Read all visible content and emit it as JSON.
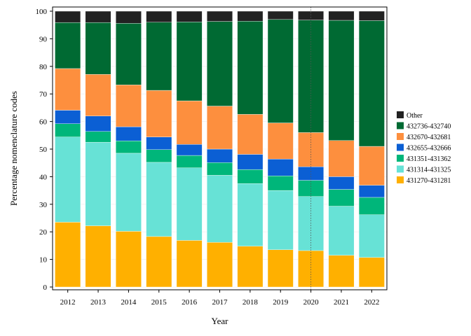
{
  "colors": {
    "background": "#ffffff",
    "grid": "#ebebeb",
    "axis": "#000000",
    "highlight_line": "#555555"
  },
  "chart_data": {
    "type": "bar",
    "stacked": true,
    "xlabel": "Year",
    "ylabel": "Percentage nomenclature codes",
    "ylim": [
      0,
      100
    ],
    "yticks": [
      0,
      10,
      20,
      30,
      40,
      50,
      60,
      70,
      80,
      90,
      100
    ],
    "grid": true,
    "legend_position": "right",
    "highlight_category": "2020",
    "categories": [
      "2012",
      "2013",
      "2014",
      "2015",
      "2016",
      "2017",
      "2018",
      "2019",
      "2020",
      "2021",
      "2022"
    ],
    "series": [
      {
        "name": "431270-431281",
        "color": "#ffb000",
        "values": [
          23.5,
          22.2,
          20.2,
          18.3,
          16.9,
          16.2,
          14.8,
          13.5,
          13.2,
          11.5,
          10.7
        ]
      },
      {
        "name": "431314-431325",
        "color": "#67e2d6",
        "values": [
          30.9,
          30.3,
          28.3,
          26.9,
          26.3,
          24.3,
          22.7,
          21.5,
          19.6,
          17.8,
          15.5
        ]
      },
      {
        "name": "431351-431362",
        "color": "#00b67a",
        "values": [
          4.8,
          3.9,
          4.5,
          4.6,
          4.5,
          4.6,
          5.1,
          5.3,
          5.9,
          6.1,
          6.3
        ]
      },
      {
        "name": "432655-432666",
        "color": "#0b5fd4",
        "values": [
          4.9,
          5.6,
          5.1,
          4.6,
          4.0,
          4.9,
          5.5,
          6.1,
          4.9,
          4.6,
          4.4
        ]
      },
      {
        "name": "432670-432681",
        "color": "#fd8f3e",
        "values": [
          15.1,
          15.1,
          15.2,
          16.9,
          15.8,
          15.6,
          14.5,
          13.1,
          12.4,
          13.1,
          14.1
        ]
      },
      {
        "name": "432736-432740",
        "color": "#006a33",
        "values": [
          16.7,
          18.8,
          22.3,
          24.7,
          28.6,
          30.7,
          33.8,
          37.5,
          40.8,
          43.6,
          45.6
        ]
      },
      {
        "name": "Other",
        "color": "#222222",
        "values": [
          4.1,
          4.1,
          4.4,
          4.0,
          3.9,
          3.7,
          3.6,
          3.0,
          3.2,
          3.3,
          3.4
        ]
      }
    ]
  }
}
